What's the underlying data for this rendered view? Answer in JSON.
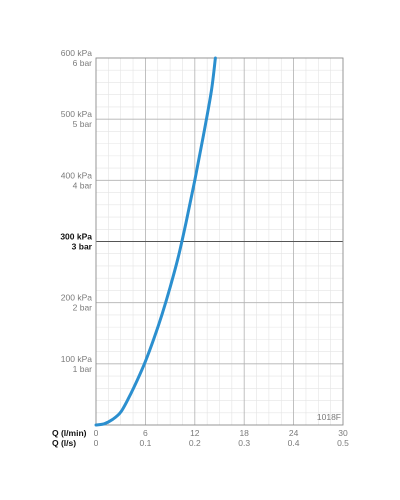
{
  "chart_data": {
    "type": "line",
    "reference_code": "1018F",
    "x_axes": [
      {
        "label": "Q (l/min)",
        "ticks": [
          "0",
          "6",
          "12",
          "18",
          "24",
          "30"
        ],
        "min": 0,
        "max": 30
      },
      {
        "label": "Q (l/s)",
        "ticks": [
          "0",
          "0.1",
          "0.2",
          "0.3",
          "0.4",
          "0.5"
        ],
        "min": 0,
        "max": 0.5
      }
    ],
    "y_axis": {
      "min": 0,
      "max": 600,
      "unit": "kPa",
      "ticks": [
        {
          "value": 600,
          "kpa": "600 kPa",
          "bar": "6 bar",
          "bold": false
        },
        {
          "value": 500,
          "kpa": "500 kPa",
          "bar": "5 bar",
          "bold": false
        },
        {
          "value": 400,
          "kpa": "400 kPa",
          "bar": "4 bar",
          "bold": false
        },
        {
          "value": 300,
          "kpa": "300 kPa",
          "bar": "3 bar",
          "bold": true
        },
        {
          "value": 200,
          "kpa": "200 kPa",
          "bar": "2 bar",
          "bold": false
        },
        {
          "value": 100,
          "kpa": "100 kPa",
          "bar": "1 bar",
          "bold": false
        }
      ]
    },
    "grid": true,
    "series": [
      {
        "color": "#2b8fcf",
        "x": [
          0,
          1,
          2,
          3,
          4,
          5,
          6,
          7,
          8,
          9,
          10,
          11,
          12,
          13,
          14,
          14.5
        ],
        "y": [
          0,
          2,
          9,
          21,
          45,
          73,
          104,
          140,
          180,
          225,
          275,
          335,
          400,
          470,
          545,
          600
        ]
      }
    ]
  }
}
